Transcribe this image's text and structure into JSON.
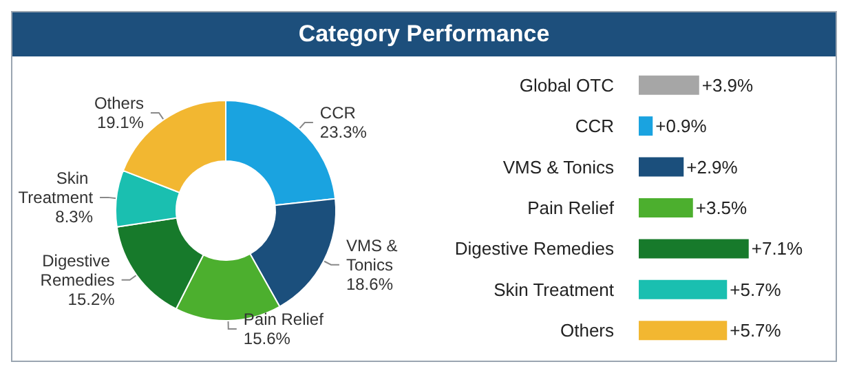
{
  "chart_data": [
    {
      "type": "donut",
      "title": "Category Performance",
      "categories": [
        "CCR",
        "VMS & Tonics",
        "Pain Relief",
        "Digestive Remedies",
        "Skin Treatment",
        "Others"
      ],
      "values": [
        23.3,
        18.6,
        15.6,
        15.2,
        8.3,
        19.1
      ],
      "colors": [
        "#1aa3e0",
        "#1b4f7c",
        "#4caf2e",
        "#177a2b",
        "#1abfb0",
        "#f2b731"
      ],
      "value_labels": [
        "23.3%",
        "18.6%",
        "15.6%",
        "15.2%",
        "8.3%",
        "19.1%"
      ],
      "legend": false
    },
    {
      "type": "bar",
      "orientation": "horizontal",
      "categories": [
        "Global OTC",
        "CCR",
        "VMS & Tonics",
        "Pain Relief",
        "Digestive Remedies",
        "Skin Treatment",
        "Others"
      ],
      "values": [
        3.9,
        0.9,
        2.9,
        3.5,
        7.1,
        5.7,
        5.7
      ],
      "colors": [
        "#a6a6a6",
        "#1aa3e0",
        "#1b4f7c",
        "#4caf2e",
        "#177a2b",
        "#1abfb0",
        "#f2b731"
      ],
      "value_labels": [
        "+3.9%",
        "+0.9%",
        "+2.9%",
        "+3.5%",
        "+7.1%",
        "+5.7%",
        "+5.7%"
      ],
      "legend": false
    }
  ]
}
